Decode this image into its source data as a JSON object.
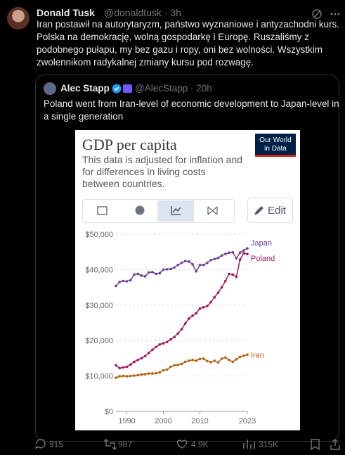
{
  "tweet": {
    "author": "Donald Tusk",
    "handle": "@donaldtusk",
    "time": "3h",
    "lines": [
      "Iran postawił na autorytaryzm, państwo wyznaniowe i antyzachodni kurs.",
      "Polska na demokrację, wolną gospodarkę i Europę. Ruszaliśmy z",
      "podobnego pułapu, my bez gazu i ropy, oni bez wolności. Wszystkim",
      "zwolennikom radykalnej zmiany kursu pod rozwagę."
    ]
  },
  "quote": {
    "author": "Alec Stapp",
    "handle": "@AlecStapp",
    "time": "20h",
    "lines": [
      "Poland went from Iran-level of economic development to Japan-level in",
      "a single generation"
    ]
  },
  "chart_data": {
    "type": "line",
    "title": "GDP per capita",
    "subtitle": [
      "This data is adjusted for inflation and",
      "for differences in living costs",
      "between countries."
    ],
    "logo": [
      "Our World",
      "in Data"
    ],
    "edit_button": "Edit",
    "x": [
      1987,
      1988,
      1989,
      1990,
      1991,
      1992,
      1993,
      1994,
      1995,
      1996,
      1997,
      1998,
      1999,
      2000,
      2001,
      2002,
      2003,
      2004,
      2005,
      2006,
      2007,
      2008,
      2009,
      2010,
      2011,
      2012,
      2013,
      2014,
      2015,
      2016,
      2017,
      2018,
      2019,
      2020,
      2021,
      2022,
      2023
    ],
    "series": [
      {
        "name": "Japan",
        "color": "#6d3e91",
        "values": [
          35400,
          36500,
          36800,
          36700,
          37000,
          38600,
          38800,
          38300,
          38100,
          39200,
          39300,
          38800,
          39000,
          40000,
          40100,
          40200,
          40600,
          41300,
          41900,
          42400,
          42300,
          41500,
          39500,
          41300,
          41300,
          41900,
          42700,
          43000,
          43300,
          44000,
          44400,
          44800,
          44900,
          43200,
          44800,
          45400,
          46000
        ]
      },
      {
        "name": "Poland",
        "color": "#a2195b",
        "values": [
          13000,
          12200,
          12400,
          12600,
          13200,
          14000,
          14500,
          15000,
          15600,
          16500,
          17400,
          18200,
          18900,
          19200,
          19600,
          20300,
          21000,
          22000,
          23200,
          24800,
          26200,
          27000,
          27700,
          29000,
          29400,
          29700,
          30800,
          32200,
          33500,
          35000,
          36800,
          38800,
          38600,
          38000,
          42800,
          44600,
          44400
        ]
      },
      {
        "name": "Iran",
        "color": "#b16214",
        "values": [
          9500,
          9900,
          10000,
          9900,
          10000,
          10100,
          10200,
          10400,
          10500,
          10700,
          10700,
          10800,
          11000,
          11600,
          11800,
          12600,
          13000,
          13100,
          13400,
          14000,
          14300,
          14500,
          14300,
          14800,
          14900,
          14200,
          13900,
          14300,
          13800,
          14900,
          15200,
          14500,
          14000,
          14700,
          15400,
          15700,
          16000
        ]
      }
    ],
    "xlim": [
      1987,
      2023
    ],
    "xticks": [
      1990,
      2000,
      2010,
      2023
    ],
    "ylim": [
      0,
      50000
    ],
    "yticks": [
      {
        "value": 0,
        "label": "$0"
      },
      {
        "value": 10000,
        "label": "$10,000"
      },
      {
        "value": 20000,
        "label": "$20,000"
      },
      {
        "value": 30000,
        "label": "$30,000"
      },
      {
        "value": 40000,
        "label": "$40,000"
      },
      {
        "value": 50000,
        "label": "$50,000"
      }
    ],
    "grid": true
  },
  "actions": {
    "replies": "915",
    "reposts": "987",
    "likes": "4.9K",
    "views": "315K"
  }
}
